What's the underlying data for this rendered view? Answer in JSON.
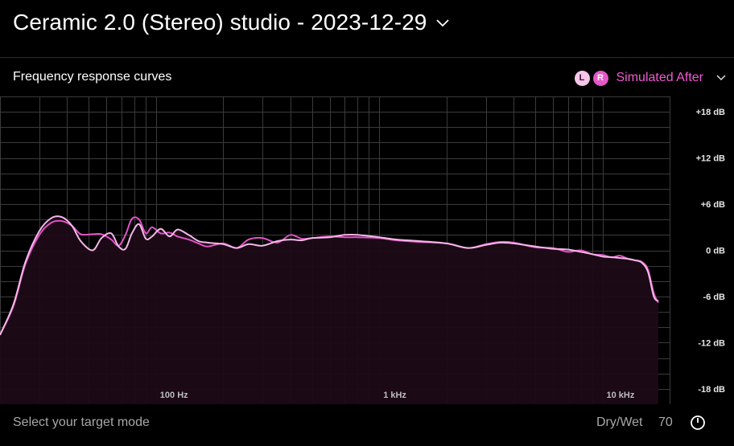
{
  "header": {
    "title": "Ceramic 2.0 (Stereo) studio - 2023-12-29"
  },
  "section": {
    "title": "Frequency response curves"
  },
  "legend": {
    "left_badge": "L",
    "right_badge": "R",
    "label": "Simulated After"
  },
  "footer": {
    "prompt": "Select your target mode",
    "drywet_label": "Dry/Wet",
    "drywet_value": "70"
  },
  "icons": {
    "title_dropdown": "chevron-down-icon",
    "legend_dropdown": "chevron-down-icon",
    "knob": "knob-icon"
  },
  "colors": {
    "curve_left": "#f3b8e6",
    "curve_right": "#e352c7",
    "fill": "#1c0a17",
    "accent": "#f25ad2"
  },
  "chart_data": {
    "type": "line",
    "xscale": "log",
    "xlim": [
      20,
      20000
    ],
    "ylim": [
      -20,
      20
    ],
    "x_tick_labels": [
      {
        "value": 100,
        "label": "100 Hz"
      },
      {
        "value": 1000,
        "label": "1 kHz"
      },
      {
        "value": 10000,
        "label": "10 kHz"
      }
    ],
    "y_tick_labels": [
      {
        "value": 18,
        "label": "+18 dB"
      },
      {
        "value": 12,
        "label": "+12 dB"
      },
      {
        "value": 6,
        "label": "+6 dB"
      },
      {
        "value": 0,
        "label": "0 dB"
      },
      {
        "value": -6,
        "label": "-6 dB"
      },
      {
        "value": -12,
        "label": "-12 dB"
      },
      {
        "value": -18,
        "label": "-18 dB"
      }
    ],
    "grid": true,
    "series": [
      {
        "name": "L",
        "x": [
          20,
          23,
          26,
          30,
          34,
          38,
          42,
          46,
          52,
          57,
          63,
          68,
          73,
          78,
          84,
          90,
          96,
          105,
          115,
          125,
          140,
          155,
          170,
          200,
          230,
          260,
          300,
          350,
          400,
          450,
          500,
          600,
          700,
          800,
          1000,
          1200,
          1500,
          2000,
          2500,
          3000,
          3500,
          4000,
          5000,
          6000,
          7000,
          8000,
          9000,
          10000,
          11000,
          12000,
          13000,
          14000,
          15000,
          16000,
          17000,
          17800
        ],
        "y": [
          -11,
          -7,
          -1.5,
          2.5,
          4.2,
          4.3,
          3.2,
          1.2,
          0,
          1.6,
          2.2,
          0.5,
          0.2,
          2.2,
          3.4,
          1.5,
          1.8,
          2.8,
          1.8,
          2.7,
          2.0,
          1.2,
          1.0,
          0.8,
          0.3,
          0.8,
          0.6,
          1.2,
          1.4,
          1.3,
          1.6,
          1.7,
          2.0,
          2.0,
          1.7,
          1.4,
          1.2,
          0.9,
          0.3,
          0.7,
          1.0,
          0.9,
          0.5,
          0.2,
          0.1,
          -0.2,
          -0.5,
          -0.8,
          -0.9,
          -1.0,
          -1.1,
          -1.3,
          -1.6,
          -2.8,
          -6.0,
          -6.6
        ]
      },
      {
        "name": "R",
        "x": [
          20,
          23,
          26,
          30,
          34,
          38,
          42,
          46,
          52,
          57,
          63,
          68,
          73,
          78,
          84,
          90,
          96,
          105,
          115,
          125,
          140,
          155,
          170,
          200,
          230,
          260,
          300,
          350,
          400,
          450,
          500,
          600,
          700,
          800,
          1000,
          1200,
          1500,
          2000,
          2500,
          3000,
          3500,
          4000,
          5000,
          6000,
          7000,
          8000,
          9000,
          10000,
          11000,
          12000,
          13000,
          14000,
          15000,
          16000,
          17000,
          17800
        ],
        "y": [
          -11,
          -7.2,
          -1.8,
          2.0,
          3.6,
          3.8,
          3.2,
          2.1,
          2.1,
          2.1,
          1.4,
          0.6,
          2.0,
          4.1,
          4.0,
          2.2,
          3.0,
          2.2,
          2.3,
          1.8,
          1.4,
          0.9,
          0.5,
          0.9,
          0.3,
          1.4,
          1.6,
          1.0,
          2.0,
          1.5,
          1.6,
          1.8,
          1.7,
          1.7,
          1.6,
          1.3,
          1.1,
          0.9,
          0.3,
          0.8,
          1.1,
          1.0,
          0.4,
          0.3,
          -0.2,
          0.0,
          -0.5,
          -0.6,
          -0.9,
          -0.7,
          -1.1,
          -1.3,
          -1.5,
          -2.5,
          -5.6,
          -6.8
        ]
      }
    ]
  }
}
